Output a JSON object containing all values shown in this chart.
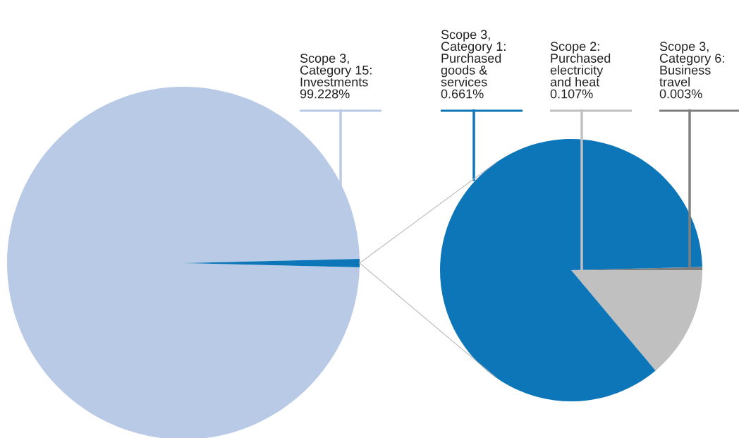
{
  "chart_data": [
    {
      "type": "pie",
      "categories": [
        "Scope 3,\nCategory 15:\nInvestments",
        null
      ],
      "values": [
        99.228,
        0.771
      ],
      "value_labels": [
        "99.228%",
        null
      ],
      "colors": [
        "#b8cae6",
        "#0d76b8"
      ]
    },
    {
      "type": "pie",
      "categories": [
        "Scope 3,\nCategory 1:\nPurchased\ngoods &\nservices",
        "Scope 2:\nPurchased\nelectricity\nand heat",
        "Scope 3,\nCategory 6:\nBusiness\ntravel"
      ],
      "values": [
        0.661,
        0.107,
        0.003
      ],
      "value_labels": [
        "0.661%",
        "0.107%",
        "0.003%"
      ],
      "colors": [
        "#0d76b8",
        "#c0c0c0",
        "#7f7f7f"
      ]
    }
  ]
}
